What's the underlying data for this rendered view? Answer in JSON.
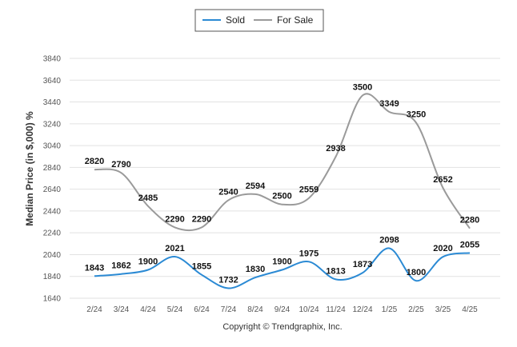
{
  "chart_data": {
    "type": "line",
    "categories": [
      "2/24",
      "3/24",
      "4/24",
      "5/24",
      "6/24",
      "7/24",
      "8/24",
      "9/24",
      "10/24",
      "11/24",
      "12/24",
      "1/25",
      "2/25",
      "3/25",
      "4/25"
    ],
    "series": [
      {
        "name": "Sold",
        "color": "#2b8ad4",
        "values": [
          1843,
          1862,
          1900,
          2021,
          1855,
          1732,
          1830,
          1900,
          1975,
          1813,
          1873,
          2098,
          1800,
          2020,
          2055
        ]
      },
      {
        "name": "For Sale",
        "color": "#9a9a9a",
        "values": [
          2820,
          2790,
          2485,
          2290,
          2290,
          2540,
          2594,
          2500,
          2559,
          2938,
          3500,
          3349,
          3250,
          2652,
          2280
        ]
      }
    ],
    "ylabel": "Median Price (in $,000) %",
    "ylim": [
      1640,
      3840
    ],
    "yticks": [
      1640,
      1840,
      2040,
      2240,
      2440,
      2640,
      2840,
      3040,
      3240,
      3440,
      3640,
      3840
    ],
    "grid": true,
    "legend": "top-center",
    "footer": "Copyright © Trendgraphix, Inc."
  }
}
